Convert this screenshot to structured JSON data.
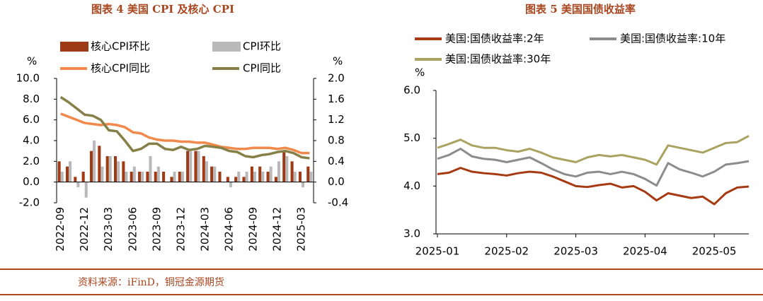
{
  "chart_data": [
    {
      "type": "combo",
      "title": "图表 4 美国 CPI 及核心 CPI",
      "y_label": "%",
      "y2_label": "%",
      "categories": [
        "2022-09",
        null,
        null,
        "2022-12",
        null,
        null,
        "2023-03",
        null,
        null,
        "2023-06",
        null,
        null,
        "2023-09",
        null,
        null,
        "2023-12",
        null,
        null,
        "2024-03",
        null,
        null,
        "2024-06",
        null,
        null,
        "2024-09",
        null,
        null,
        "2024-12",
        null,
        null,
        "2025-03",
        null
      ],
      "ylim": [
        -2,
        10
      ],
      "yticks": [
        {
          "value": -2,
          "label": "-2.0"
        },
        {
          "value": 0,
          "label": "0.0"
        },
        {
          "value": 2,
          "label": "2.0"
        },
        {
          "value": 4,
          "label": "4.0"
        },
        {
          "value": 6,
          "label": "6.0"
        },
        {
          "value": 8,
          "label": "8.0"
        },
        {
          "value": 10,
          "label": "10.0"
        }
      ],
      "y2lim": [
        -0.4,
        2.0
      ],
      "y2ticks": [
        {
          "value": -0.4,
          "label": "-0.4"
        },
        {
          "value": 0,
          "label": "0.0"
        },
        0.4,
        0.8,
        1.2,
        1.6,
        {
          "value": 2,
          "label": "2.0"
        }
      ],
      "series": [
        {
          "name": "核心CPI环比",
          "type": "bar",
          "axis": "y2",
          "color": "#9e3b16",
          "values": [
            0.4,
            0.3,
            0.1,
            0.2,
            0.6,
            0.7,
            0.5,
            0.5,
            0.4,
            0.2,
            0.2,
            0.2,
            0.2,
            0.2,
            0.1,
            0.2,
            0.6,
            0.6,
            0.5,
            0.3,
            0.2,
            0.1,
            0.1,
            0.1,
            0.3,
            0.3,
            0.2,
            0.1,
            0.6,
            0.4,
            0.2,
            0.3
          ]
        },
        {
          "name": "CPI环比",
          "type": "bar",
          "axis": "y2",
          "color": "#b9b9b9",
          "values": [
            0.2,
            0.4,
            -0.1,
            -0.3,
            0.8,
            0.3,
            0.5,
            0.4,
            0.2,
            0.3,
            0.2,
            0.5,
            0.3,
            0.0,
            0.2,
            0.2,
            0.6,
            0.6,
            0.4,
            0.3,
            0.0,
            -0.1,
            0.2,
            0.2,
            0.2,
            0.2,
            0.3,
            0.4,
            0.5,
            0.2,
            -0.1,
            0.2
          ]
        },
        {
          "name": "核心CPI同比",
          "type": "line",
          "color": "#f0894b",
          "values": [
            6.6,
            6.3,
            6.0,
            5.7,
            5.6,
            5.5,
            5.6,
            5.5,
            5.3,
            4.8,
            4.7,
            4.3,
            4.1,
            4.0,
            4.0,
            3.9,
            3.9,
            3.8,
            3.8,
            3.6,
            3.4,
            3.3,
            3.2,
            3.2,
            3.3,
            3.3,
            3.3,
            3.2,
            3.3,
            3.1,
            2.8,
            2.8
          ]
        },
        {
          "name": "CPI同比",
          "type": "line",
          "color": "#858047",
          "values": [
            8.2,
            7.7,
            7.1,
            6.5,
            6.4,
            6.0,
            5.0,
            4.9,
            4.0,
            3.0,
            3.2,
            3.7,
            3.7,
            3.2,
            3.1,
            3.4,
            3.1,
            3.2,
            3.5,
            3.4,
            3.3,
            3.0,
            2.9,
            2.5,
            2.4,
            2.6,
            2.7,
            2.9,
            3.0,
            2.8,
            2.4,
            2.3
          ]
        }
      ]
    },
    {
      "type": "line",
      "title": "图表 5 美国国债收益率",
      "y_label": "%",
      "categories": [
        "2025-01",
        null,
        null,
        null,
        null,
        null,
        "2025-02",
        null,
        null,
        null,
        null,
        null,
        "2025-03",
        null,
        null,
        null,
        null,
        null,
        "2025-04",
        null,
        null,
        null,
        null,
        null,
        "2025-05",
        null,
        null,
        null
      ],
      "ylim": [
        3,
        6
      ],
      "yticks": [
        {
          "value": 3,
          "label": "3.0"
        },
        {
          "value": 4,
          "label": "4.0"
        },
        {
          "value": 5,
          "label": "5.0"
        },
        {
          "value": 6,
          "label": "6.0"
        }
      ],
      "series": [
        {
          "name": "美国:国债收益率:2年",
          "color": "#a63a12",
          "values": [
            4.25,
            4.28,
            4.38,
            4.3,
            4.27,
            4.25,
            4.22,
            4.27,
            4.3,
            4.28,
            4.2,
            4.1,
            4.0,
            3.98,
            4.02,
            4.05,
            3.97,
            4.0,
            3.88,
            3.7,
            3.85,
            3.8,
            3.75,
            3.78,
            3.62,
            3.85,
            3.97,
            3.99
          ]
        },
        {
          "name": "美国:国债收益率:10年",
          "color": "#8c8c8c",
          "values": [
            4.57,
            4.65,
            4.78,
            4.62,
            4.57,
            4.55,
            4.5,
            4.55,
            4.6,
            4.48,
            4.35,
            4.25,
            4.2,
            4.28,
            4.3,
            4.25,
            4.3,
            4.25,
            4.15,
            4.01,
            4.48,
            4.35,
            4.28,
            4.2,
            4.3,
            4.45,
            4.48,
            4.52
          ]
        },
        {
          "name": "美国:国债收益率:30年",
          "color": "#a9a260",
          "values": [
            4.8,
            4.88,
            4.97,
            4.85,
            4.8,
            4.8,
            4.75,
            4.72,
            4.78,
            4.7,
            4.6,
            4.55,
            4.5,
            4.6,
            4.65,
            4.62,
            4.65,
            4.6,
            4.55,
            4.45,
            4.85,
            4.8,
            4.75,
            4.7,
            4.8,
            4.9,
            4.92,
            5.05
          ]
        }
      ]
    }
  ],
  "source": "资料来源：iFinD，铜冠金源期货"
}
